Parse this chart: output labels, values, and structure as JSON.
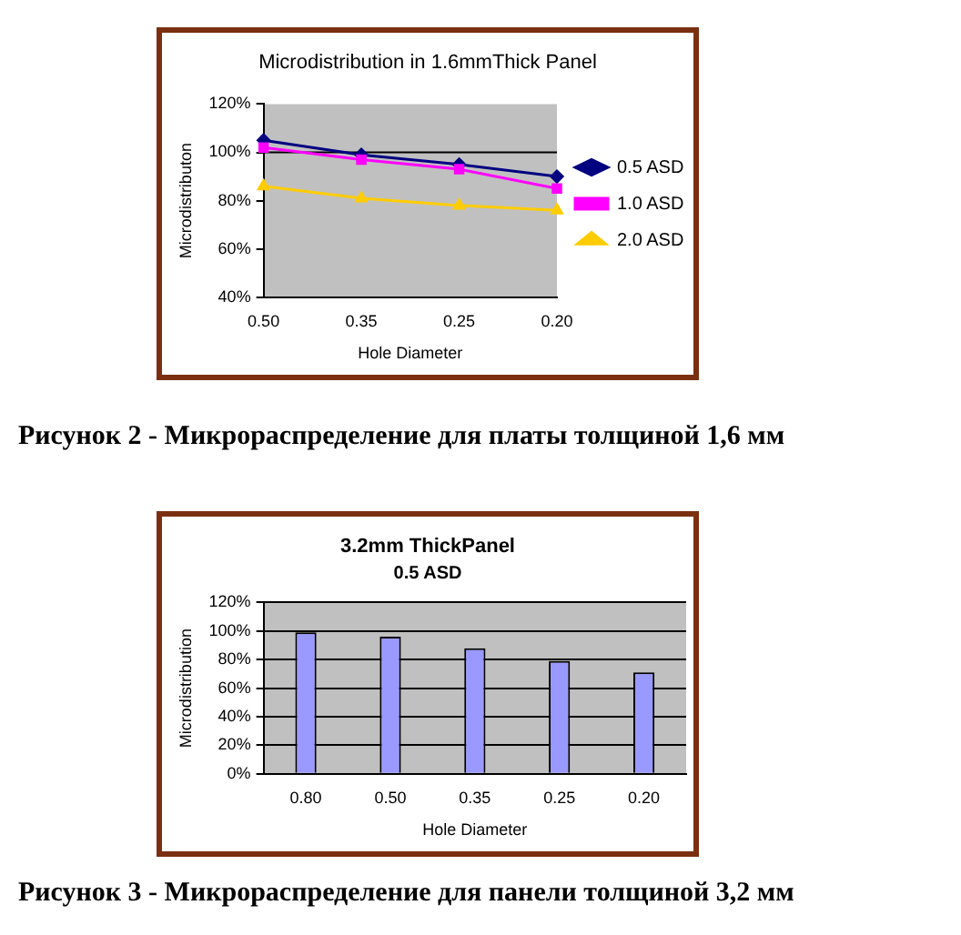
{
  "chart_data": [
    {
      "type": "line",
      "title": "Microdistribution in 1.6mmThick Panel",
      "xlabel": "Hole Diameter",
      "ylabel": "Microdistributon",
      "categories": [
        "0.50",
        "0.35",
        "0.25",
        "0.20"
      ],
      "series": [
        {
          "name": "0.5 ASD",
          "color": "#000080",
          "marker": "diamond",
          "values": [
            105,
            99,
            95,
            90
          ]
        },
        {
          "name": "1.0 ASD",
          "color": "#ff00ff",
          "marker": "square",
          "values": [
            102,
            97,
            93,
            85
          ]
        },
        {
          "name": "2.0 ASD",
          "color": "#ffcc00",
          "marker": "triangle",
          "values": [
            86,
            81,
            78,
            76
          ]
        }
      ],
      "ylim": [
        40,
        120
      ],
      "yticks": [
        {
          "value": 40,
          "label": "40%"
        },
        {
          "value": 60,
          "label": "60%"
        },
        {
          "value": 80,
          "label": "80%"
        },
        {
          "value": 100,
          "label": "100%"
        },
        {
          "value": 120,
          "label": "120%"
        }
      ],
      "grid": false,
      "ref_lines": [
        {
          "axis": "y",
          "value": 100,
          "color": "#000000"
        }
      ],
      "legend": "right",
      "line_style": "solid",
      "annotations": [
        "Рисунок 2 - Микрораспределение для платы толщиной 1,6 мм"
      ]
    },
    {
      "type": "bar",
      "title": "3.2mm ThickPanel",
      "subtitle": "0.5 ASD",
      "xlabel": "Hole Diameter",
      "ylabel": "Microdistribution",
      "categories": [
        "0.80",
        "0.50",
        "0.35",
        "0.25",
        "0.20"
      ],
      "values": [
        99,
        96,
        88,
        79,
        71
      ],
      "color": "#9999ff",
      "ylim": [
        0,
        120
      ],
      "yticks": [
        {
          "value": 0,
          "label": "0%"
        },
        {
          "value": 20,
          "label": "20%"
        },
        {
          "value": 40,
          "label": "40%"
        },
        {
          "value": 60,
          "label": "60%"
        },
        {
          "value": 80,
          "label": "80%"
        },
        {
          "value": 100,
          "label": "100%"
        },
        {
          "value": 120,
          "label": "120%"
        }
      ],
      "grid": "y",
      "legend": false,
      "annotations": [
        "Рисунок 3 - Микрораспределение для панели толщиной 3,2 мм"
      ]
    }
  ]
}
